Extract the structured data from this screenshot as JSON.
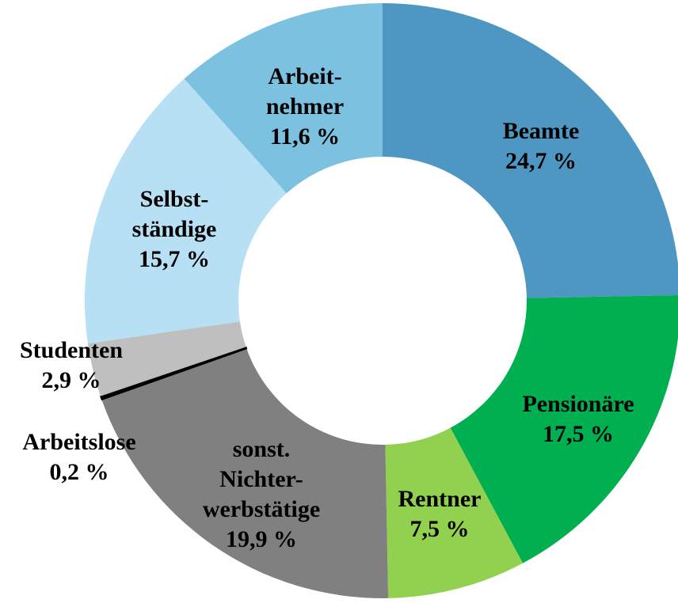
{
  "chart_data": {
    "type": "donut",
    "categories": [
      "Beamte",
      "Pensionäre",
      "Rentner",
      "sonst.\nNichter-\nwerbstätige",
      "Arbeitslose",
      "Studenten",
      "Selbst-\nständige",
      "Arbeit-\nnehmer"
    ],
    "values": [
      24.7,
      17.5,
      7.5,
      19.9,
      0.2,
      2.9,
      15.7,
      11.6
    ],
    "value_labels": [
      "24,7 %",
      "17,5 %",
      "7,5 %",
      "19,9 %",
      "0,2 %",
      "2,9 %",
      "15,7 %",
      "11,6 %"
    ],
    "colors": [
      "#4f97c3",
      "#00b050",
      "#92d050",
      "#808080",
      "#000000",
      "#bfbfbf",
      "#b7e0f5",
      "#7cc1e0"
    ]
  }
}
